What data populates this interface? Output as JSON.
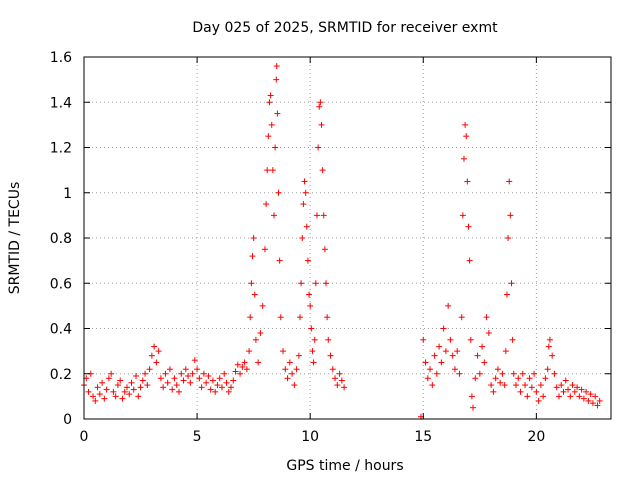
{
  "chart_data": {
    "type": "scatter",
    "title": "Day 025 of 2025, SRMTID for receiver exmt",
    "xlabel": "GPS time / hours",
    "ylabel": "SRMTID / TECUs",
    "xlim": [
      0,
      23.3
    ],
    "ylim": [
      0,
      1.6
    ],
    "xticks": [
      0,
      5,
      10,
      15,
      20
    ],
    "xtick_labels": [
      "0",
      "5",
      "10",
      "15",
      "20"
    ],
    "yticks": [
      0,
      0.2,
      0.4,
      0.6,
      0.8,
      1.0,
      1.2,
      1.4,
      1.6
    ],
    "ytick_labels": [
      "0",
      "0.2",
      "0.4",
      "0.6",
      "0.8",
      "1",
      "1.2",
      "1.4",
      "1.6"
    ],
    "grid": true,
    "marker": "+",
    "color": "#ff0000",
    "series": [
      {
        "name": "SRMTID",
        "points": [
          [
            0.0,
            0.15
          ],
          [
            0.1,
            0.18
          ],
          [
            0.2,
            0.12
          ],
          [
            0.3,
            0.2
          ],
          [
            0.4,
            0.1
          ],
          [
            0.5,
            0.08
          ],
          [
            0.6,
            0.14
          ],
          [
            0.7,
            0.11
          ],
          [
            0.8,
            0.16
          ],
          [
            0.9,
            0.09
          ],
          [
            1.0,
            0.13
          ],
          [
            1.1,
            0.18
          ],
          [
            1.2,
            0.2
          ],
          [
            1.3,
            0.12
          ],
          [
            1.4,
            0.1
          ],
          [
            1.5,
            0.15
          ],
          [
            1.6,
            0.17
          ],
          [
            1.7,
            0.09
          ],
          [
            1.8,
            0.12
          ],
          [
            1.9,
            0.14
          ],
          [
            2.0,
            0.11
          ],
          [
            2.1,
            0.16
          ],
          [
            2.2,
            0.13
          ],
          [
            2.3,
            0.19
          ],
          [
            2.4,
            0.1
          ],
          [
            2.5,
            0.14
          ],
          [
            2.6,
            0.17
          ],
          [
            2.7,
            0.2
          ],
          [
            2.8,
            0.15
          ],
          [
            2.9,
            0.22
          ],
          [
            3.0,
            0.28
          ],
          [
            3.1,
            0.32
          ],
          [
            3.2,
            0.25
          ],
          [
            3.3,
            0.3
          ],
          [
            3.4,
            0.18
          ],
          [
            3.5,
            0.14
          ],
          [
            3.6,
            0.2
          ],
          [
            3.7,
            0.16
          ],
          [
            3.8,
            0.22
          ],
          [
            3.9,
            0.13
          ],
          [
            4.0,
            0.18
          ],
          [
            4.1,
            0.15
          ],
          [
            4.2,
            0.12
          ],
          [
            4.3,
            0.2
          ],
          [
            4.4,
            0.17
          ],
          [
            4.5,
            0.22
          ],
          [
            4.6,
            0.19
          ],
          [
            4.7,
            0.16
          ],
          [
            4.8,
            0.2
          ],
          [
            4.9,
            0.26
          ],
          [
            5.0,
            0.22
          ],
          [
            5.1,
            0.18
          ],
          [
            5.2,
            0.14
          ],
          [
            5.3,
            0.2
          ],
          [
            5.4,
            0.16
          ],
          [
            5.5,
            0.19
          ],
          [
            5.6,
            0.13
          ],
          [
            5.7,
            0.17
          ],
          [
            5.8,
            0.12
          ],
          [
            5.9,
            0.15
          ],
          [
            6.0,
            0.18
          ],
          [
            6.1,
            0.14
          ],
          [
            6.2,
            0.2
          ],
          [
            6.3,
            0.16
          ],
          [
            6.4,
            0.12
          ],
          [
            6.5,
            0.14
          ],
          [
            6.6,
            0.17
          ],
          [
            6.7,
            0.21
          ],
          [
            6.8,
            0.24
          ],
          [
            6.9,
            0.2
          ],
          [
            7.0,
            0.23
          ],
          [
            7.1,
            0.25
          ],
          [
            7.2,
            0.22
          ],
          [
            7.3,
            0.3
          ],
          [
            7.35,
            0.45
          ],
          [
            7.4,
            0.6
          ],
          [
            7.45,
            0.72
          ],
          [
            7.5,
            0.8
          ],
          [
            7.55,
            0.55
          ],
          [
            7.6,
            0.35
          ],
          [
            7.7,
            0.25
          ],
          [
            7.8,
            0.38
          ],
          [
            7.9,
            0.5
          ],
          [
            8.0,
            0.75
          ],
          [
            8.05,
            0.95
          ],
          [
            8.1,
            1.1
          ],
          [
            8.15,
            1.25
          ],
          [
            8.2,
            1.4
          ],
          [
            8.25,
            1.43
          ],
          [
            8.3,
            1.3
          ],
          [
            8.35,
            1.1
          ],
          [
            8.4,
            0.9
          ],
          [
            8.45,
            1.2
          ],
          [
            8.5,
            1.5
          ],
          [
            8.52,
            1.56
          ],
          [
            8.55,
            1.35
          ],
          [
            8.6,
            1.0
          ],
          [
            8.65,
            0.7
          ],
          [
            8.7,
            0.45
          ],
          [
            8.8,
            0.3
          ],
          [
            8.9,
            0.22
          ],
          [
            9.0,
            0.18
          ],
          [
            9.1,
            0.25
          ],
          [
            9.2,
            0.2
          ],
          [
            9.3,
            0.15
          ],
          [
            9.4,
            0.22
          ],
          [
            9.5,
            0.28
          ],
          [
            9.55,
            0.45
          ],
          [
            9.6,
            0.6
          ],
          [
            9.65,
            0.8
          ],
          [
            9.7,
            0.95
          ],
          [
            9.75,
            1.05
          ],
          [
            9.8,
            1.0
          ],
          [
            9.85,
            0.85
          ],
          [
            9.9,
            0.7
          ],
          [
            9.95,
            0.55
          ],
          [
            10.0,
            0.5
          ],
          [
            10.05,
            0.4
          ],
          [
            10.1,
            0.3
          ],
          [
            10.15,
            0.25
          ],
          [
            10.2,
            0.35
          ],
          [
            10.25,
            0.6
          ],
          [
            10.3,
            0.9
          ],
          [
            10.35,
            1.2
          ],
          [
            10.4,
            1.38
          ],
          [
            10.45,
            1.4
          ],
          [
            10.5,
            1.3
          ],
          [
            10.55,
            1.1
          ],
          [
            10.6,
            0.9
          ],
          [
            10.65,
            0.75
          ],
          [
            10.7,
            0.6
          ],
          [
            10.75,
            0.45
          ],
          [
            10.8,
            0.35
          ],
          [
            10.9,
            0.28
          ],
          [
            11.0,
            0.22
          ],
          [
            11.1,
            0.18
          ],
          [
            11.2,
            0.15
          ],
          [
            11.3,
            0.2
          ],
          [
            11.4,
            0.17
          ],
          [
            11.5,
            0.14
          ],
          [
            14.9,
            0.01
          ],
          [
            15.0,
            0.35
          ],
          [
            15.1,
            0.25
          ],
          [
            15.2,
            0.18
          ],
          [
            15.3,
            0.22
          ],
          [
            15.4,
            0.15
          ],
          [
            15.5,
            0.28
          ],
          [
            15.6,
            0.2
          ],
          [
            15.7,
            0.32
          ],
          [
            15.8,
            0.25
          ],
          [
            15.9,
            0.4
          ],
          [
            16.0,
            0.3
          ],
          [
            16.1,
            0.5
          ],
          [
            16.2,
            0.35
          ],
          [
            16.3,
            0.28
          ],
          [
            16.4,
            0.22
          ],
          [
            16.5,
            0.3
          ],
          [
            16.6,
            0.2
          ],
          [
            16.7,
            0.45
          ],
          [
            16.75,
            0.9
          ],
          [
            16.8,
            1.15
          ],
          [
            16.85,
            1.3
          ],
          [
            16.9,
            1.25
          ],
          [
            16.95,
            1.05
          ],
          [
            17.0,
            0.85
          ],
          [
            17.05,
            0.7
          ],
          [
            17.1,
            0.35
          ],
          [
            17.15,
            0.1
          ],
          [
            17.2,
            0.05
          ],
          [
            17.3,
            0.18
          ],
          [
            17.4,
            0.28
          ],
          [
            17.5,
            0.2
          ],
          [
            17.6,
            0.32
          ],
          [
            17.7,
            0.25
          ],
          [
            17.8,
            0.45
          ],
          [
            17.9,
            0.38
          ],
          [
            18.0,
            0.15
          ],
          [
            18.1,
            0.12
          ],
          [
            18.2,
            0.18
          ],
          [
            18.3,
            0.22
          ],
          [
            18.4,
            0.16
          ],
          [
            18.5,
            0.2
          ],
          [
            18.6,
            0.15
          ],
          [
            18.65,
            0.3
          ],
          [
            18.7,
            0.55
          ],
          [
            18.75,
            0.8
          ],
          [
            18.8,
            1.05
          ],
          [
            18.85,
            0.9
          ],
          [
            18.9,
            0.6
          ],
          [
            18.95,
            0.35
          ],
          [
            19.0,
            0.2
          ],
          [
            19.1,
            0.15
          ],
          [
            19.2,
            0.18
          ],
          [
            19.3,
            0.12
          ],
          [
            19.4,
            0.2
          ],
          [
            19.5,
            0.15
          ],
          [
            19.6,
            0.1
          ],
          [
            19.7,
            0.18
          ],
          [
            19.8,
            0.14
          ],
          [
            19.9,
            0.2
          ],
          [
            20.0,
            0.12
          ],
          [
            20.1,
            0.08
          ],
          [
            20.2,
            0.15
          ],
          [
            20.3,
            0.1
          ],
          [
            20.4,
            0.18
          ],
          [
            20.5,
            0.22
          ],
          [
            20.55,
            0.32
          ],
          [
            20.6,
            0.35
          ],
          [
            20.7,
            0.28
          ],
          [
            20.8,
            0.2
          ],
          [
            20.9,
            0.14
          ],
          [
            21.0,
            0.1
          ],
          [
            21.1,
            0.15
          ],
          [
            21.2,
            0.12
          ],
          [
            21.3,
            0.17
          ],
          [
            21.4,
            0.13
          ],
          [
            21.5,
            0.1
          ],
          [
            21.6,
            0.15
          ],
          [
            21.7,
            0.12
          ],
          [
            21.8,
            0.14
          ],
          [
            21.9,
            0.1
          ],
          [
            22.0,
            0.13
          ],
          [
            22.1,
            0.09
          ],
          [
            22.2,
            0.12
          ],
          [
            22.3,
            0.08
          ],
          [
            22.4,
            0.11
          ],
          [
            22.5,
            0.07
          ],
          [
            22.6,
            0.1
          ],
          [
            22.7,
            0.06
          ],
          [
            22.8,
            0.08
          ]
        ]
      }
    ]
  }
}
